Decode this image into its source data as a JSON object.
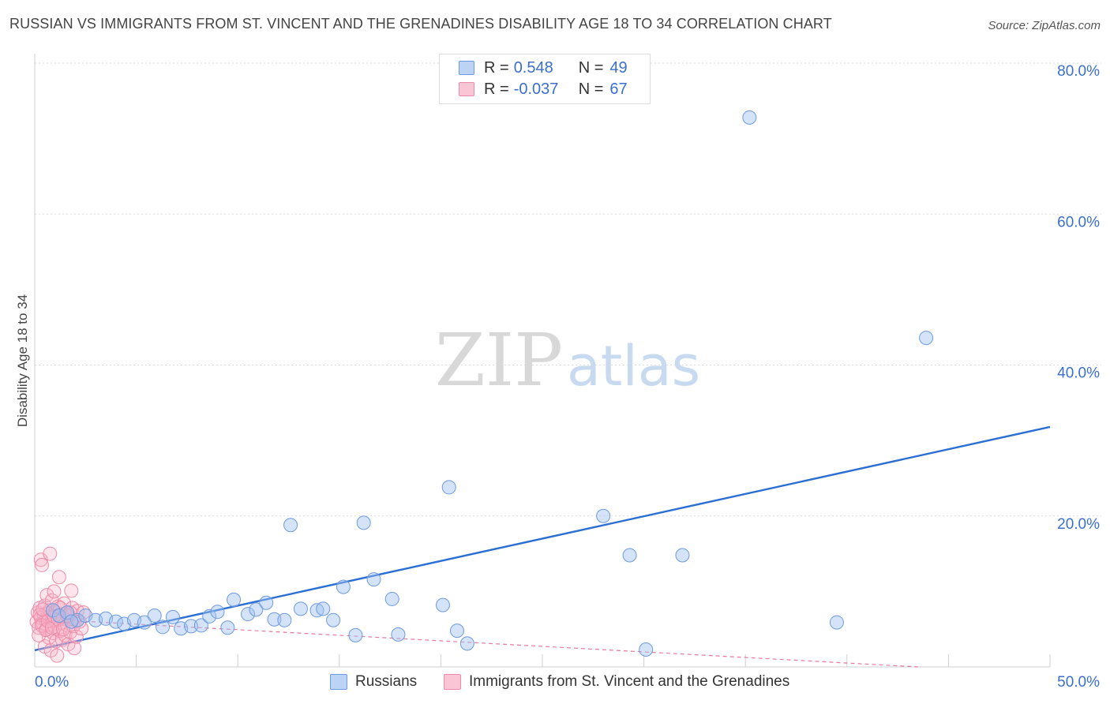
{
  "title": "RUSSIAN VS IMMIGRANTS FROM ST. VINCENT AND THE GRENADINES DISABILITY AGE 18 TO 34 CORRELATION CHART",
  "source": "Source: ZipAtlas.com",
  "watermark": {
    "zip": "ZIP",
    "atlas": "atlas"
  },
  "legend_stats": [
    {
      "r_label": "R = ",
      "r_value": "0.548",
      "n_label": "N = ",
      "n_value": "49"
    },
    {
      "r_label": "R = ",
      "r_value": "-0.037",
      "n_label": "N = ",
      "n_value": "67"
    }
  ],
  "bottom_legend": [
    "Russians",
    "Immigrants from St. Vincent and the Grenadines"
  ],
  "chart_data": {
    "type": "scatter",
    "title": "RUSSIAN VS IMMIGRANTS FROM ST. VINCENT AND THE GRENADINES DISABILITY AGE 18 TO 34 CORRELATION CHART",
    "xlabel": "",
    "ylabel": "Disability Age 18 to 34",
    "xlim": [
      0,
      50
    ],
    "ylim": [
      0,
      80
    ],
    "x_tick_labels": [
      "0.0%",
      "50.0%"
    ],
    "y_tick_labels": [
      "20.0%",
      "40.0%",
      "60.0%",
      "80.0%"
    ],
    "y_ticks": [
      20,
      40,
      60,
      80
    ],
    "colors": {
      "russians": "#6d9be0",
      "svg": "#ee8aa8",
      "russians_line": "#2b6fd3",
      "svg_line": "#e67a9c"
    },
    "series": [
      {
        "name": "Russians",
        "trend": [
          [
            0,
            2.2
          ],
          [
            50,
            31.8
          ]
        ],
        "points": [
          [
            0.9,
            7.5
          ],
          [
            1.2,
            6.8
          ],
          [
            1.6,
            7.2
          ],
          [
            2.1,
            6.2
          ],
          [
            2.5,
            6.8
          ],
          [
            3.0,
            6.2
          ],
          [
            3.5,
            6.4
          ],
          [
            4.0,
            6.0
          ],
          [
            4.4,
            5.7
          ],
          [
            4.9,
            6.2
          ],
          [
            5.4,
            5.9
          ],
          [
            5.9,
            6.8
          ],
          [
            6.3,
            5.3
          ],
          [
            6.8,
            6.6
          ],
          [
            7.2,
            5.1
          ],
          [
            7.7,
            5.4
          ],
          [
            8.2,
            5.5
          ],
          [
            8.6,
            6.7
          ],
          [
            9.0,
            7.3
          ],
          [
            9.5,
            5.2
          ],
          [
            9.8,
            8.9
          ],
          [
            10.5,
            7.0
          ],
          [
            10.9,
            7.6
          ],
          [
            11.4,
            8.5
          ],
          [
            11.8,
            6.3
          ],
          [
            12.3,
            6.2
          ],
          [
            12.6,
            18.8
          ],
          [
            13.1,
            7.7
          ],
          [
            13.9,
            7.5
          ],
          [
            14.2,
            7.7
          ],
          [
            14.7,
            6.2
          ],
          [
            15.2,
            10.6
          ],
          [
            15.8,
            4.2
          ],
          [
            16.2,
            19.1
          ],
          [
            16.7,
            11.6
          ],
          [
            17.6,
            9.0
          ],
          [
            17.9,
            4.3
          ],
          [
            20.1,
            8.2
          ],
          [
            20.4,
            23.8
          ],
          [
            20.8,
            4.8
          ],
          [
            21.3,
            3.1
          ],
          [
            28.0,
            20.0
          ],
          [
            29.3,
            14.8
          ],
          [
            30.1,
            2.3
          ],
          [
            31.9,
            14.8
          ],
          [
            35.2,
            72.8
          ],
          [
            39.5,
            5.9
          ],
          [
            43.9,
            43.6
          ],
          [
            1.8,
            6.0
          ]
        ]
      },
      {
        "name": "Immigrants from St. Vincent and the Grenadines",
        "trend": [
          [
            0,
            6.4
          ],
          [
            43.5,
            0.0
          ]
        ],
        "points": [
          [
            0.1,
            6.0
          ],
          [
            0.15,
            7.2
          ],
          [
            0.2,
            5.2
          ],
          [
            0.25,
            7.8
          ],
          [
            0.3,
            6.5
          ],
          [
            0.3,
            14.2
          ],
          [
            0.35,
            13.5
          ],
          [
            0.4,
            5.8
          ],
          [
            0.45,
            6.9
          ],
          [
            0.5,
            2.7
          ],
          [
            0.5,
            8.1
          ],
          [
            0.55,
            6.2
          ],
          [
            0.6,
            5.0
          ],
          [
            0.6,
            9.5
          ],
          [
            0.65,
            7.1
          ],
          [
            0.7,
            3.9
          ],
          [
            0.7,
            6.6
          ],
          [
            0.75,
            15.0
          ],
          [
            0.75,
            7.5
          ],
          [
            0.8,
            2.2
          ],
          [
            0.8,
            5.6
          ],
          [
            0.85,
            8.8
          ],
          [
            0.9,
            6.0
          ],
          [
            0.9,
            4.5
          ],
          [
            0.95,
            10.0
          ],
          [
            1.0,
            7.3
          ],
          [
            1.0,
            5.3
          ],
          [
            1.05,
            3.4
          ],
          [
            1.1,
            6.8
          ],
          [
            1.1,
            1.5
          ],
          [
            1.15,
            8.0
          ],
          [
            1.2,
            11.9
          ],
          [
            1.25,
            4.8
          ],
          [
            1.3,
            7.0
          ],
          [
            1.3,
            5.9
          ],
          [
            1.35,
            3.6
          ],
          [
            1.4,
            6.4
          ],
          [
            1.45,
            8.4
          ],
          [
            1.5,
            4.2
          ],
          [
            1.55,
            7.1
          ],
          [
            1.6,
            5.5
          ],
          [
            1.65,
            3.0
          ],
          [
            1.7,
            6.7
          ],
          [
            1.75,
            4.6
          ],
          [
            1.8,
            10.1
          ],
          [
            1.85,
            7.8
          ],
          [
            1.9,
            5.4
          ],
          [
            1.95,
            2.5
          ],
          [
            2.0,
            6.2
          ],
          [
            2.05,
            4.0
          ],
          [
            2.1,
            7.4
          ],
          [
            0.2,
            4.2
          ],
          [
            0.25,
            6.9
          ],
          [
            0.35,
            5.5
          ],
          [
            0.4,
            7.6
          ],
          [
            0.55,
            4.9
          ],
          [
            0.65,
            6.1
          ],
          [
            0.85,
            5.2
          ],
          [
            0.95,
            6.7
          ],
          [
            1.15,
            6.3
          ],
          [
            1.25,
            7.8
          ],
          [
            1.4,
            5.0
          ],
          [
            1.6,
            6.8
          ],
          [
            1.75,
            7.2
          ],
          [
            2.2,
            6.0
          ],
          [
            2.3,
            5.1
          ],
          [
            2.4,
            7.2
          ]
        ]
      }
    ]
  }
}
